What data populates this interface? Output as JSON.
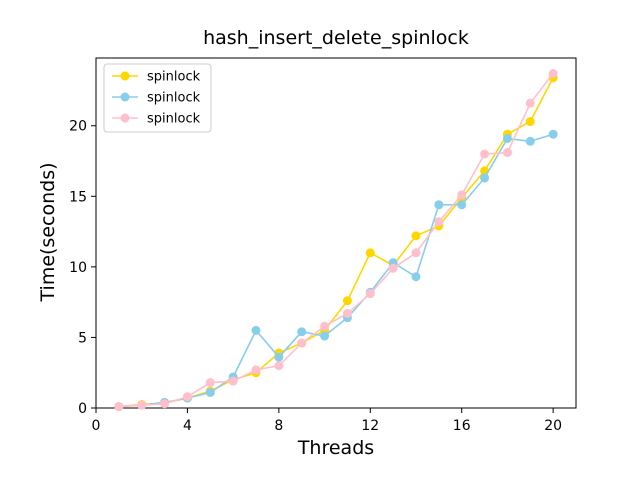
{
  "chart_data": {
    "type": "line",
    "title": "hash_insert_delete_spinlock",
    "xlabel": "Threads",
    "ylabel": "Time(seconds)",
    "xlim": [
      0,
      21
    ],
    "ylim": [
      0,
      24.8
    ],
    "xticks": [
      0,
      4,
      8,
      12,
      16,
      20
    ],
    "yticks": [
      0,
      5,
      10,
      15,
      20
    ],
    "grid": false,
    "legend_position": "top-left",
    "x": [
      1,
      2,
      3,
      4,
      5,
      6,
      7,
      8,
      9,
      10,
      11,
      12,
      13,
      14,
      15,
      16,
      17,
      18,
      19,
      20
    ],
    "series": [
      {
        "name": "spinlock",
        "color": "#FFD700",
        "values": [
          0.1,
          0.25,
          0.35,
          0.7,
          1.2,
          2.0,
          2.5,
          3.9,
          4.6,
          5.5,
          7.6,
          11.0,
          10.1,
          12.2,
          12.9,
          14.9,
          16.8,
          19.4,
          20.3,
          23.4
        ]
      },
      {
        "name": "spinlock",
        "color": "#87CEEB",
        "values": [
          0.1,
          0.2,
          0.4,
          0.7,
          1.1,
          2.2,
          5.5,
          3.6,
          5.4,
          5.1,
          6.4,
          8.2,
          10.3,
          9.3,
          14.4,
          14.4,
          16.3,
          19.1,
          18.9,
          19.4
        ]
      },
      {
        "name": "spinlock",
        "color": "#FFC0CB",
        "values": [
          0.1,
          0.2,
          0.3,
          0.8,
          1.8,
          1.9,
          2.7,
          3.0,
          4.6,
          5.8,
          6.7,
          8.1,
          9.9,
          11.0,
          13.2,
          15.1,
          18.0,
          18.1,
          21.6,
          23.7
        ]
      }
    ]
  }
}
